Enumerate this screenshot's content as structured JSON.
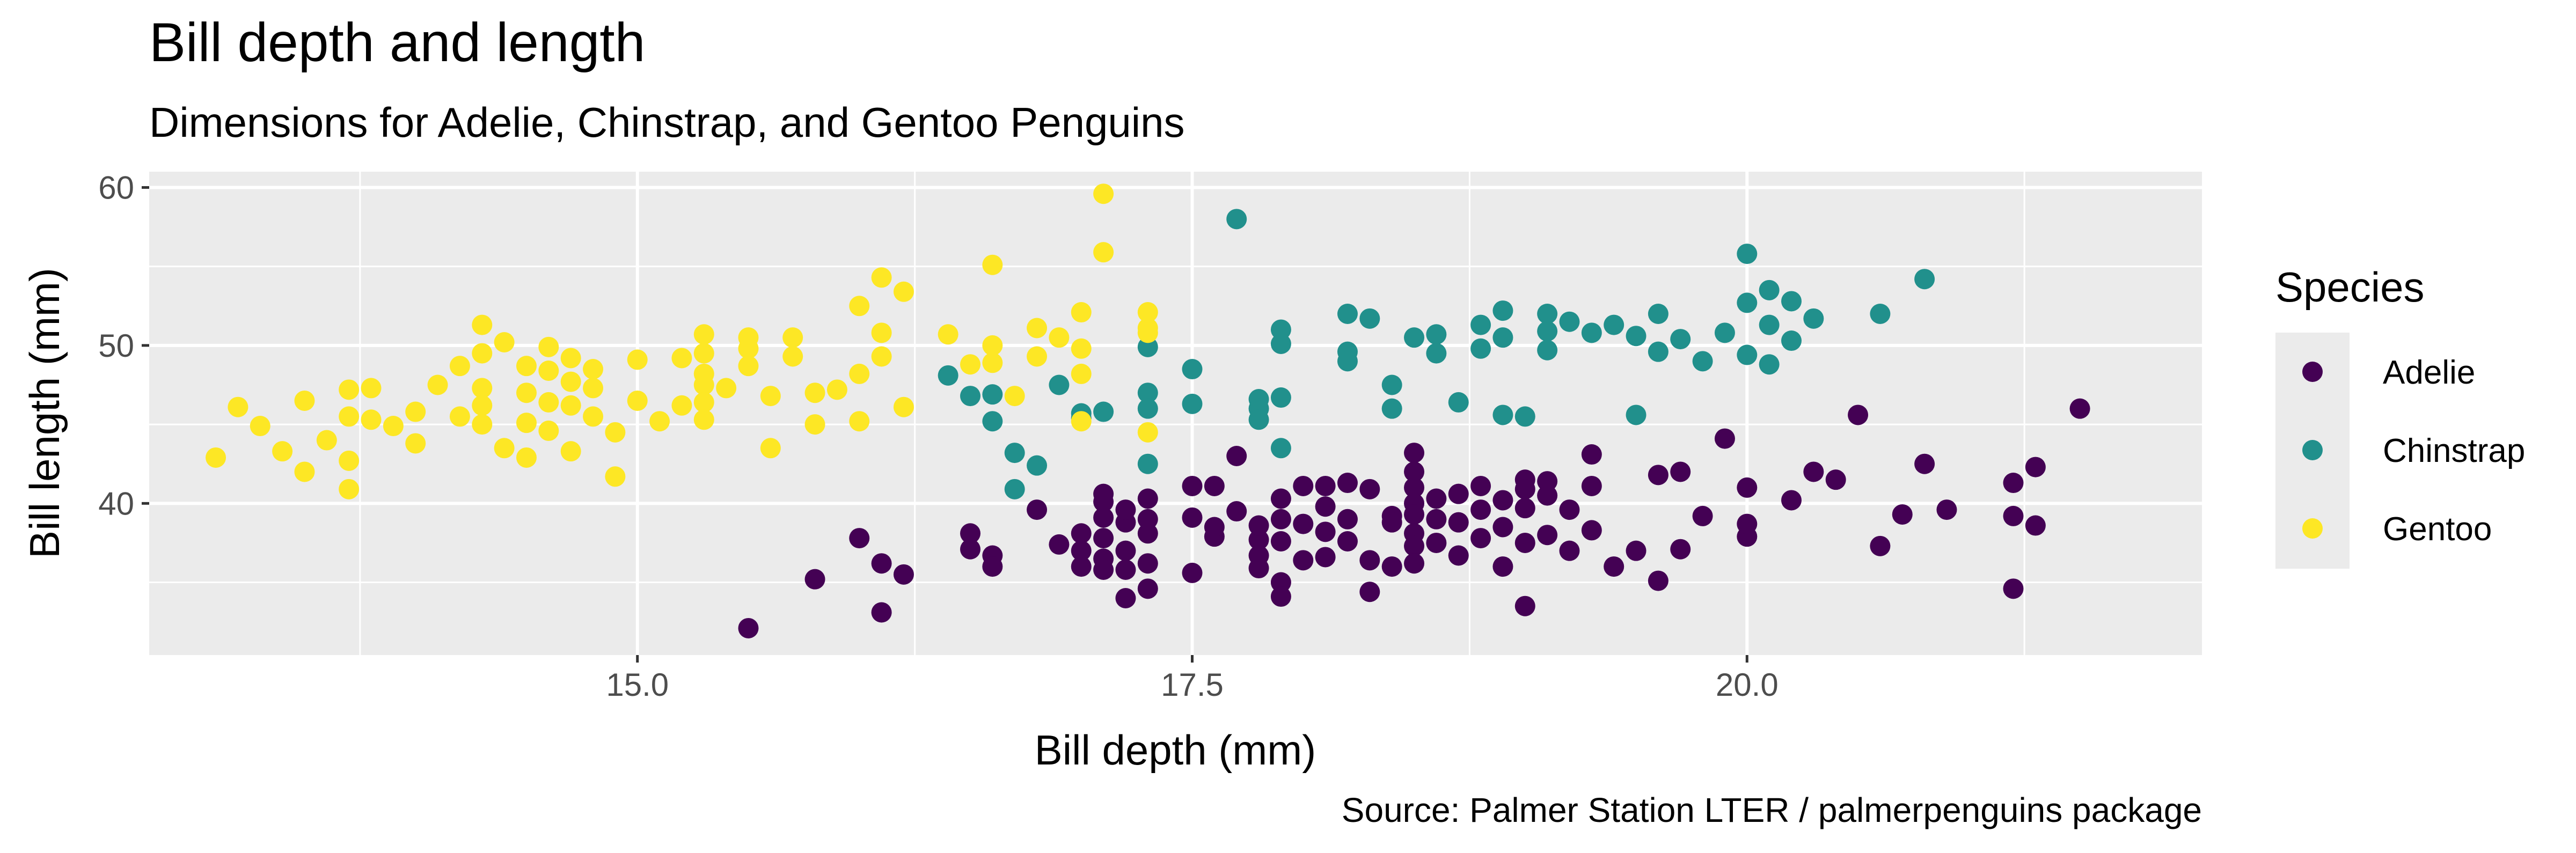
{
  "chart_data": {
    "type": "scatter",
    "title": "Bill depth and length",
    "subtitle": "Dimensions for Adelie, Chinstrap, and Gentoo Penguins",
    "caption": "Source: Palmer Station LTER / palmerpenguins package",
    "xlabel": "Bill depth (mm)",
    "ylabel": "Bill length (mm)",
    "xlim": [
      12.8,
      22.05
    ],
    "ylim": [
      30.4,
      61.0
    ],
    "xticks": [
      15.0,
      17.5,
      20.0
    ],
    "xtick_labels": [
      "15.0",
      "17.5",
      "20.0"
    ],
    "yticks": [
      40,
      50,
      60
    ],
    "ytick_labels": [
      "40",
      "50",
      "60"
    ],
    "grid": true,
    "legend": {
      "title": "Species",
      "position": "right"
    },
    "series": [
      {
        "name": "Adelie",
        "color": "#440154",
        "points": [
          [
            15.5,
            32.1
          ],
          [
            16.1,
            33.1
          ],
          [
            16.2,
            35.5
          ],
          [
            16.0,
            37.8
          ],
          [
            15.8,
            35.2
          ],
          [
            16.1,
            36.2
          ],
          [
            16.5,
            38.1
          ],
          [
            16.5,
            37.1
          ],
          [
            16.6,
            36.7
          ],
          [
            16.6,
            36.0
          ],
          [
            16.8,
            39.6
          ],
          [
            16.9,
            37.4
          ],
          [
            17.0,
            36.0
          ],
          [
            17.0,
            37.0
          ],
          [
            17.0,
            38.1
          ],
          [
            17.1,
            40.6
          ],
          [
            17.1,
            40.1
          ],
          [
            17.1,
            39.1
          ],
          [
            17.1,
            37.8
          ],
          [
            17.1,
            36.5
          ],
          [
            17.1,
            35.8
          ],
          [
            17.2,
            34.0
          ],
          [
            17.2,
            35.8
          ],
          [
            17.2,
            37.0
          ],
          [
            17.2,
            38.8
          ],
          [
            17.2,
            39.6
          ],
          [
            17.3,
            40.3
          ],
          [
            17.3,
            38.1
          ],
          [
            17.3,
            36.2
          ],
          [
            17.3,
            34.6
          ],
          [
            17.3,
            39.0
          ],
          [
            17.5,
            41.1
          ],
          [
            17.5,
            39.1
          ],
          [
            17.5,
            35.6
          ],
          [
            17.6,
            37.9
          ],
          [
            17.6,
            38.5
          ],
          [
            17.6,
            41.1
          ],
          [
            17.7,
            43.0
          ],
          [
            17.7,
            39.5
          ],
          [
            17.8,
            37.7
          ],
          [
            17.8,
            36.7
          ],
          [
            17.8,
            35.9
          ],
          [
            17.8,
            38.6
          ],
          [
            17.9,
            40.3
          ],
          [
            17.9,
            39.0
          ],
          [
            17.9,
            37.6
          ],
          [
            17.9,
            35.0
          ],
          [
            17.9,
            34.1
          ],
          [
            18.0,
            36.4
          ],
          [
            18.0,
            38.7
          ],
          [
            18.0,
            41.1
          ],
          [
            18.1,
            39.8
          ],
          [
            18.1,
            38.2
          ],
          [
            18.1,
            36.6
          ],
          [
            18.1,
            41.1
          ],
          [
            18.2,
            41.3
          ],
          [
            18.2,
            39.0
          ],
          [
            18.2,
            37.6
          ],
          [
            18.3,
            36.4
          ],
          [
            18.3,
            34.4
          ],
          [
            18.3,
            40.9
          ],
          [
            18.4,
            39.2
          ],
          [
            18.4,
            38.8
          ],
          [
            18.4,
            36.0
          ],
          [
            18.5,
            43.2
          ],
          [
            18.5,
            42.0
          ],
          [
            18.5,
            41.0
          ],
          [
            18.5,
            40.0
          ],
          [
            18.5,
            39.3
          ],
          [
            18.5,
            38.1
          ],
          [
            18.5,
            37.3
          ],
          [
            18.5,
            36.2
          ],
          [
            18.6,
            40.3
          ],
          [
            18.6,
            39.0
          ],
          [
            18.6,
            37.5
          ],
          [
            18.7,
            40.6
          ],
          [
            18.7,
            38.8
          ],
          [
            18.7,
            36.7
          ],
          [
            18.8,
            41.1
          ],
          [
            18.8,
            39.6
          ],
          [
            18.8,
            37.8
          ],
          [
            18.9,
            40.2
          ],
          [
            18.9,
            38.5
          ],
          [
            18.9,
            36.0
          ],
          [
            19.0,
            41.5
          ],
          [
            19.0,
            40.9
          ],
          [
            19.0,
            39.7
          ],
          [
            19.0,
            37.5
          ],
          [
            19.0,
            33.5
          ],
          [
            19.1,
            41.4
          ],
          [
            19.1,
            40.5
          ],
          [
            19.1,
            38.0
          ],
          [
            19.2,
            39.6
          ],
          [
            19.2,
            37.0
          ],
          [
            19.3,
            41.1
          ],
          [
            19.3,
            43.1
          ],
          [
            19.3,
            38.3
          ],
          [
            19.4,
            36.0
          ],
          [
            19.5,
            37.0
          ],
          [
            19.6,
            35.1
          ],
          [
            19.6,
            41.8
          ],
          [
            19.7,
            37.1
          ],
          [
            19.7,
            42.0
          ],
          [
            19.8,
            39.2
          ],
          [
            19.9,
            44.1
          ],
          [
            20.0,
            37.9
          ],
          [
            20.0,
            38.7
          ],
          [
            20.0,
            41.0
          ],
          [
            20.2,
            40.2
          ],
          [
            20.3,
            42.0
          ],
          [
            20.4,
            41.5
          ],
          [
            20.5,
            45.6
          ],
          [
            20.6,
            37.3
          ],
          [
            20.7,
            39.3
          ],
          [
            20.8,
            42.5
          ],
          [
            20.9,
            39.6
          ],
          [
            21.2,
            41.3
          ],
          [
            21.2,
            39.2
          ],
          [
            21.2,
            34.6
          ],
          [
            21.3,
            42.3
          ],
          [
            21.3,
            38.6
          ],
          [
            21.5,
            46.0
          ]
        ]
      },
      {
        "name": "Chinstrap",
        "color": "#21908c",
        "points": [
          [
            16.4,
            48.1
          ],
          [
            16.5,
            46.8
          ],
          [
            16.6,
            46.9
          ],
          [
            16.6,
            45.2
          ],
          [
            16.7,
            43.2
          ],
          [
            16.8,
            42.4
          ],
          [
            16.7,
            40.9
          ],
          [
            16.9,
            47.5
          ],
          [
            17.0,
            45.7
          ],
          [
            17.0,
            45.4
          ],
          [
            17.1,
            45.8
          ],
          [
            17.3,
            49.9
          ],
          [
            17.3,
            47.0
          ],
          [
            17.3,
            46.0
          ],
          [
            17.3,
            42.5
          ],
          [
            17.5,
            48.5
          ],
          [
            17.5,
            46.3
          ],
          [
            17.7,
            58.0
          ],
          [
            17.8,
            46.6
          ],
          [
            17.8,
            46.0
          ],
          [
            17.8,
            45.3
          ],
          [
            17.9,
            51.0
          ],
          [
            17.9,
            50.1
          ],
          [
            17.9,
            46.7
          ],
          [
            17.9,
            43.5
          ],
          [
            18.2,
            52.0
          ],
          [
            18.2,
            49.6
          ],
          [
            18.2,
            49.0
          ],
          [
            18.3,
            51.7
          ],
          [
            18.4,
            47.5
          ],
          [
            18.4,
            46.0
          ],
          [
            18.5,
            50.5
          ],
          [
            18.6,
            50.7
          ],
          [
            18.6,
            49.5
          ],
          [
            18.7,
            46.4
          ],
          [
            18.8,
            51.3
          ],
          [
            18.9,
            52.2
          ],
          [
            18.8,
            49.8
          ],
          [
            18.9,
            50.5
          ],
          [
            18.9,
            45.6
          ],
          [
            19.0,
            45.5
          ],
          [
            19.1,
            52.0
          ],
          [
            19.1,
            50.9
          ],
          [
            19.1,
            49.7
          ],
          [
            19.2,
            51.5
          ],
          [
            19.3,
            50.8
          ],
          [
            19.4,
            51.3
          ],
          [
            19.5,
            50.6
          ],
          [
            19.5,
            45.6
          ],
          [
            19.6,
            52.0
          ],
          [
            19.6,
            49.6
          ],
          [
            19.7,
            50.4
          ],
          [
            19.8,
            49.0
          ],
          [
            19.9,
            50.8
          ],
          [
            20.0,
            55.8
          ],
          [
            20.0,
            52.7
          ],
          [
            20.1,
            53.5
          ],
          [
            20.1,
            51.3
          ],
          [
            20.0,
            49.4
          ],
          [
            20.1,
            48.8
          ],
          [
            20.2,
            52.8
          ],
          [
            20.2,
            50.3
          ],
          [
            20.3,
            51.7
          ],
          [
            20.6,
            52.0
          ],
          [
            20.8,
            54.2
          ]
        ]
      },
      {
        "name": "Gentoo",
        "color": "#fde725",
        "points": [
          [
            13.1,
            42.9
          ],
          [
            13.2,
            46.1
          ],
          [
            13.3,
            44.9
          ],
          [
            13.4,
            43.3
          ],
          [
            13.5,
            46.5
          ],
          [
            13.5,
            42.0
          ],
          [
            13.6,
            44.0
          ],
          [
            13.7,
            47.2
          ],
          [
            13.7,
            45.5
          ],
          [
            13.7,
            42.7
          ],
          [
            13.7,
            40.9
          ],
          [
            13.8,
            47.3
          ],
          [
            13.8,
            45.3
          ],
          [
            13.9,
            44.9
          ],
          [
            14.0,
            45.8
          ],
          [
            14.0,
            43.8
          ],
          [
            14.1,
            47.5
          ],
          [
            14.2,
            48.7
          ],
          [
            14.2,
            45.5
          ],
          [
            14.3,
            51.3
          ],
          [
            14.3,
            49.5
          ],
          [
            14.3,
            47.3
          ],
          [
            14.3,
            46.2
          ],
          [
            14.3,
            45.0
          ],
          [
            14.4,
            43.5
          ],
          [
            14.4,
            50.2
          ],
          [
            14.5,
            48.7
          ],
          [
            14.5,
            47.0
          ],
          [
            14.5,
            45.1
          ],
          [
            14.5,
            42.9
          ],
          [
            14.6,
            49.9
          ],
          [
            14.6,
            48.4
          ],
          [
            14.6,
            46.4
          ],
          [
            14.6,
            44.6
          ],
          [
            14.7,
            49.2
          ],
          [
            14.7,
            47.7
          ],
          [
            14.7,
            46.2
          ],
          [
            14.7,
            43.3
          ],
          [
            14.8,
            48.5
          ],
          [
            14.8,
            47.3
          ],
          [
            14.8,
            45.5
          ],
          [
            14.9,
            44.5
          ],
          [
            14.9,
            41.7
          ],
          [
            15.0,
            49.1
          ],
          [
            15.0,
            46.5
          ],
          [
            15.1,
            45.2
          ],
          [
            15.2,
            46.2
          ],
          [
            15.2,
            49.2
          ],
          [
            15.3,
            50.7
          ],
          [
            15.3,
            49.5
          ],
          [
            15.3,
            48.2
          ],
          [
            15.3,
            47.5
          ],
          [
            15.3,
            46.4
          ],
          [
            15.3,
            45.3
          ],
          [
            15.4,
            47.3
          ],
          [
            15.5,
            50.5
          ],
          [
            15.5,
            49.8
          ],
          [
            15.5,
            48.7
          ],
          [
            15.6,
            46.8
          ],
          [
            15.6,
            43.5
          ],
          [
            15.7,
            50.5
          ],
          [
            15.7,
            49.3
          ],
          [
            15.8,
            47.0
          ],
          [
            15.8,
            45.0
          ],
          [
            15.9,
            47.2
          ],
          [
            16.0,
            52.5
          ],
          [
            16.0,
            48.2
          ],
          [
            16.0,
            45.2
          ],
          [
            16.1,
            54.3
          ],
          [
            16.1,
            50.8
          ],
          [
            16.1,
            49.3
          ],
          [
            16.2,
            53.4
          ],
          [
            16.2,
            46.1
          ],
          [
            16.4,
            50.7
          ],
          [
            16.5,
            48.8
          ],
          [
            16.6,
            55.1
          ],
          [
            16.6,
            50.0
          ],
          [
            16.6,
            48.9
          ],
          [
            16.7,
            46.8
          ],
          [
            16.8,
            51.1
          ],
          [
            16.8,
            49.3
          ],
          [
            16.9,
            50.5
          ],
          [
            17.0,
            49.8
          ],
          [
            17.0,
            52.1
          ],
          [
            17.0,
            48.2
          ],
          [
            17.0,
            45.2
          ],
          [
            17.3,
            51.1
          ],
          [
            17.3,
            52.1
          ],
          [
            17.1,
            55.9
          ],
          [
            17.1,
            59.6
          ],
          [
            17.3,
            50.8
          ],
          [
            17.3,
            44.5
          ]
        ]
      }
    ]
  }
}
